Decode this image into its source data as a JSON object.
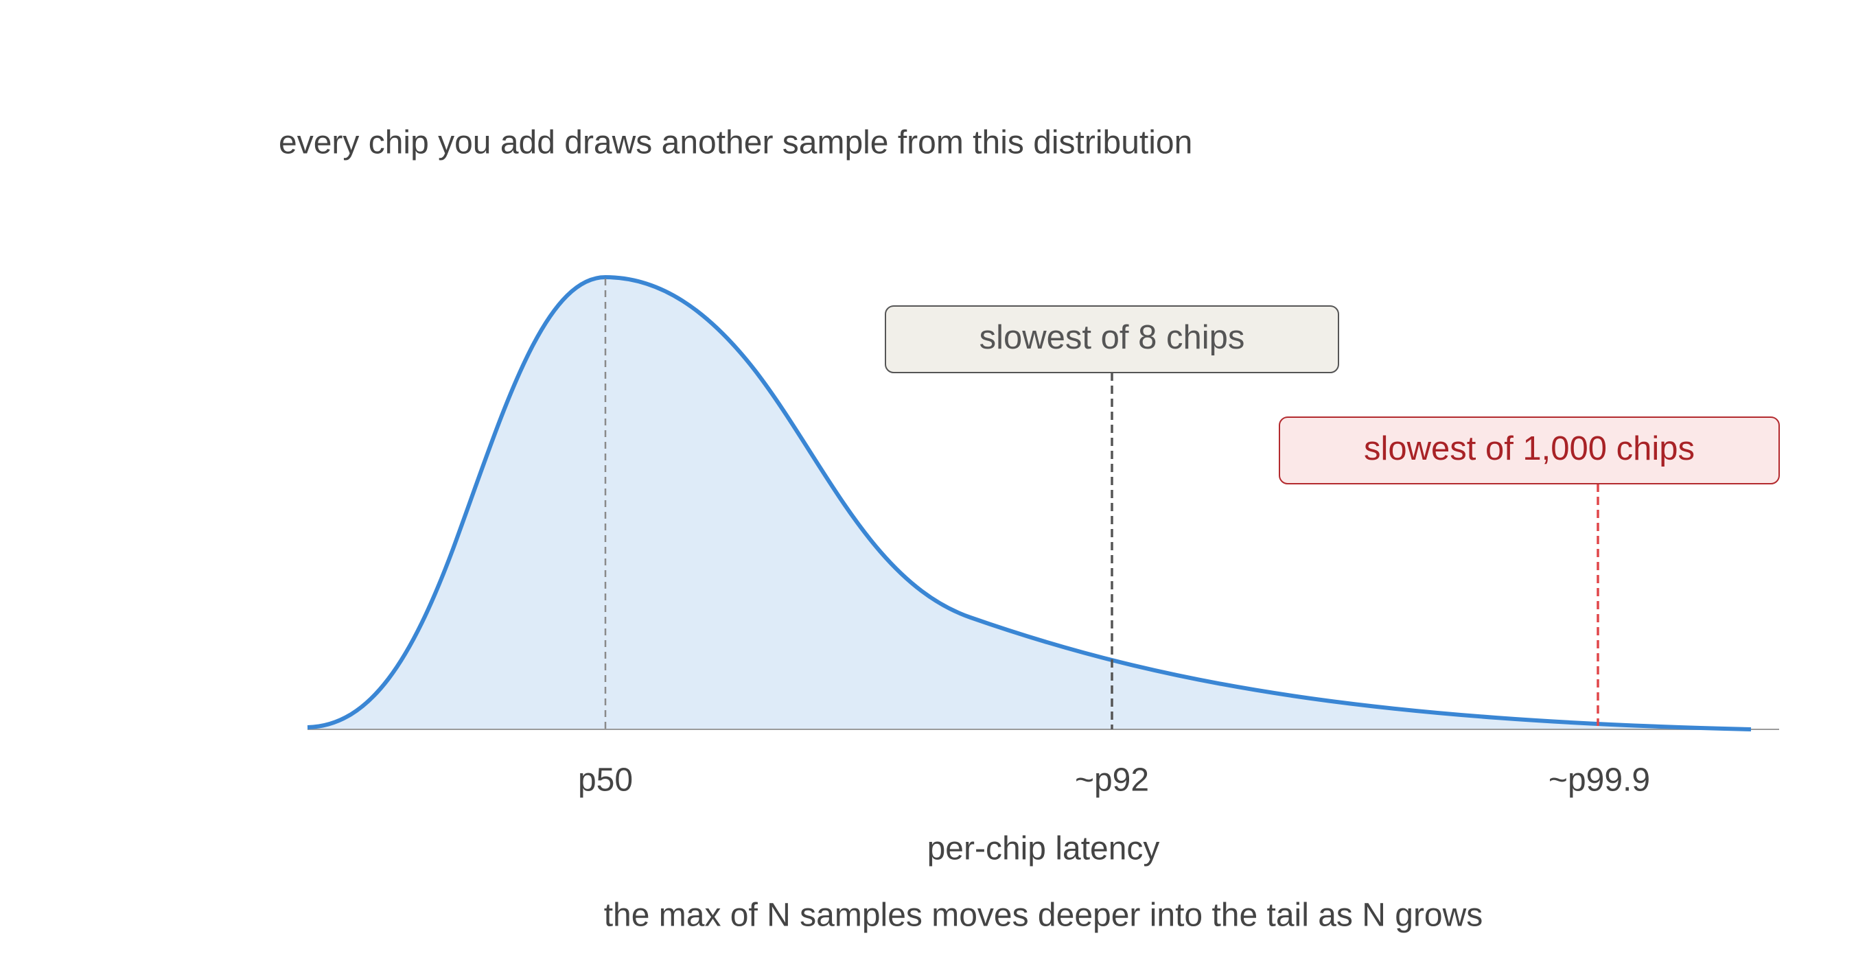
{
  "title": "every chip you add draws another sample from this distribution",
  "callouts": [
    {
      "label": "slowest of 8 chips"
    },
    {
      "label": "slowest of 1,000 chips"
    }
  ],
  "markers": [
    "p50",
    "~p92",
    "~p99.9"
  ],
  "axis_label": "per-chip latency",
  "caption": "the max of N samples moves deeper into the tail as N grows"
}
